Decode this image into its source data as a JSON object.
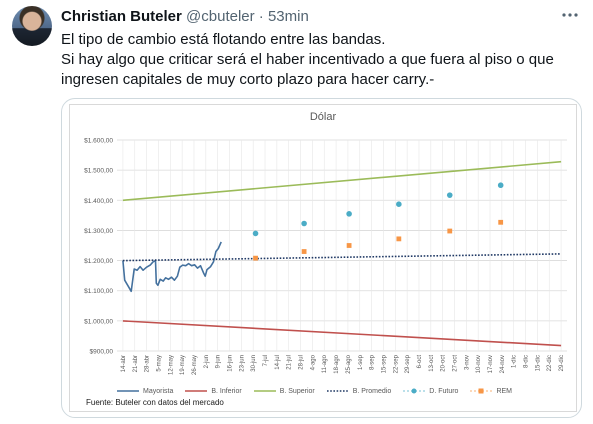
{
  "tweet": {
    "author_name": "Christian Buteler",
    "handle": "@cbuteler",
    "separator": "·",
    "time": "53min",
    "more_icon": "more-horizontal-icon",
    "line1": "El tipo de cambio está flotando entre las bandas.",
    "line2": "Si hay algo que criticar será el haber incentivado a que fuera al piso o que ingresen capitales de muy corto plazo para hacer carry.-"
  },
  "chart_data": {
    "type": "line",
    "title": "Dólar",
    "ylim": [
      900,
      1600
    ],
    "y_tick_labels": [
      "$900,00",
      "$1.000,00",
      "$1.100,00",
      "$1.200,00",
      "$1.300,00",
      "$1.400,00",
      "$1.500,00",
      "$1.600,00"
    ],
    "x_tick_labels": [
      "14-abr",
      "21-abr",
      "28-abr",
      "5-may",
      "12-may",
      "19-may",
      "26-may",
      "2-jun",
      "9-jun",
      "16-jun",
      "23-jun",
      "30-jun",
      "7-jul",
      "14-jul",
      "21-jul",
      "28-jul",
      "4-ago",
      "11-ago",
      "18-ago",
      "25-ago",
      "1-sep",
      "8-sep",
      "15-sep",
      "22-sep",
      "29-sep",
      "6-oct",
      "13-oct",
      "20-oct",
      "27-oct",
      "3-nov",
      "10-nov",
      "17-nov",
      "24-nov",
      "1-dic",
      "8-dic",
      "15-dic",
      "22-dic",
      "29-dic"
    ],
    "grid": true,
    "legend_position": "bottom",
    "series": [
      {
        "name": "Mayorista",
        "style": "line",
        "color": "#44719e",
        "points": [
          [
            0,
            1200
          ],
          [
            0.15,
            1135
          ],
          [
            0.4,
            1118
          ],
          [
            0.7,
            1098
          ],
          [
            0.95,
            1172
          ],
          [
            1.2,
            1168
          ],
          [
            1.45,
            1180
          ],
          [
            1.7,
            1168
          ],
          [
            2.0,
            1178
          ],
          [
            2.3,
            1185
          ],
          [
            2.55,
            1196
          ],
          [
            2.75,
            1200
          ],
          [
            2.82,
            1125
          ],
          [
            2.95,
            1118
          ],
          [
            3.15,
            1138
          ],
          [
            3.4,
            1132
          ],
          [
            3.6,
            1143
          ],
          [
            3.85,
            1138
          ],
          [
            4.1,
            1145
          ],
          [
            4.35,
            1135
          ],
          [
            4.6,
            1148
          ],
          [
            4.8,
            1178
          ],
          [
            5.05,
            1185
          ],
          [
            5.3,
            1183
          ],
          [
            5.55,
            1190
          ],
          [
            5.8,
            1183
          ],
          [
            6.05,
            1186
          ],
          [
            6.3,
            1175
          ],
          [
            6.55,
            1183
          ],
          [
            6.8,
            1160
          ],
          [
            6.95,
            1148
          ],
          [
            7.1,
            1170
          ],
          [
            7.4,
            1180
          ],
          [
            7.65,
            1196
          ],
          [
            7.85,
            1230
          ],
          [
            8.05,
            1240
          ],
          [
            8.3,
            1262
          ]
        ]
      },
      {
        "name": "B. Inferior",
        "style": "line",
        "color": "#c0504d",
        "points": [
          [
            0,
            1000
          ],
          [
            37,
            918
          ]
        ]
      },
      {
        "name": "B. Superior",
        "style": "line",
        "color": "#9bbb59",
        "points": [
          [
            0,
            1400
          ],
          [
            37,
            1528
          ]
        ]
      },
      {
        "name": "B. Promedio",
        "style": "dotted",
        "color": "#1f3864",
        "points": [
          [
            0,
            1200
          ],
          [
            37,
            1222
          ]
        ]
      },
      {
        "name": "D. Futuro",
        "style": "markers",
        "marker": "circle",
        "color": "#4bacc6",
        "points": [
          [
            11.2,
            1290
          ],
          [
            15.3,
            1323
          ],
          [
            19.1,
            1355
          ],
          [
            23.3,
            1387
          ],
          [
            27.6,
            1417
          ],
          [
            31.9,
            1450
          ]
        ]
      },
      {
        "name": "REM",
        "style": "markers",
        "marker": "square",
        "color": "#f79646",
        "points": [
          [
            11.2,
            1208
          ],
          [
            15.3,
            1230
          ],
          [
            19.1,
            1250
          ],
          [
            23.3,
            1272
          ],
          [
            27.6,
            1298
          ],
          [
            31.9,
            1327
          ]
        ]
      }
    ],
    "source": "Fuente: Buteler con datos del mercado"
  }
}
